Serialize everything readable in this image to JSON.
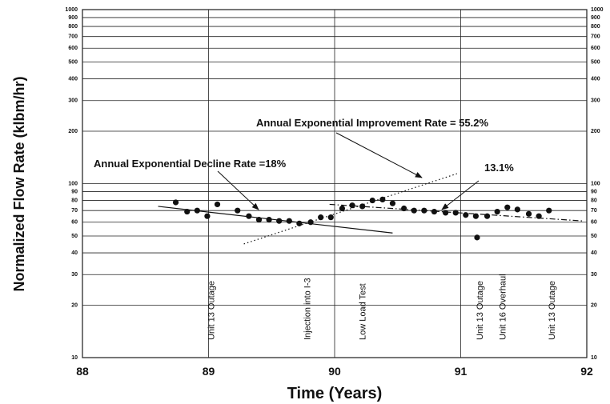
{
  "chart_data": {
    "type": "scatter",
    "ylabel": "Normalized Flow Rate (klbm/hr)",
    "xlabel": "Time (Years)",
    "xlim": [
      88,
      92
    ],
    "xticks": [
      88,
      89,
      90,
      91,
      92
    ],
    "ylim": [
      10,
      1000
    ],
    "log_y": true,
    "grid": true,
    "yticks": [
      10,
      20,
      30,
      40,
      50,
      60,
      70,
      80,
      90,
      100,
      200,
      300,
      400,
      500,
      600,
      700,
      800,
      900,
      1000
    ],
    "annotations": [
      "Annual Exponential Improvement Rate = 55.2%",
      "Annual Exponential Decline Rate =18%",
      "13.1%"
    ],
    "events": [
      {
        "label": "Unit 13 Outage",
        "x": 89.02
      },
      {
        "label": "Injection into I-3",
        "x": 89.78
      },
      {
        "label": "Low Load Test",
        "x": 90.22
      },
      {
        "label": "Unit 13 Outage",
        "x": 91.15
      },
      {
        "label": "Unit 16 Overhaul",
        "x": 91.33
      },
      {
        "label": "Unit 13 Outage",
        "x": 91.72
      }
    ],
    "points": {
      "color": "#111",
      "x": [
        88.74,
        88.83,
        88.91,
        88.99,
        89.07,
        89.23,
        89.32,
        89.4,
        89.48,
        89.56,
        89.64,
        89.72,
        89.81,
        89.89,
        89.97,
        90.06,
        90.14,
        90.22,
        90.3,
        90.38,
        90.46,
        90.55,
        90.63,
        90.71,
        90.79,
        90.88,
        90.96,
        91.04,
        91.12,
        91.13,
        91.21,
        91.29,
        91.37,
        91.45,
        91.54,
        91.62,
        91.7
      ],
      "values": [
        78,
        69,
        70,
        65,
        76,
        70,
        65,
        62,
        62,
        61,
        61,
        59,
        60,
        64,
        64,
        72,
        75,
        74,
        80,
        81,
        77,
        72,
        70,
        70,
        69,
        68,
        68,
        66,
        65,
        49,
        65,
        69,
        73,
        71,
        67,
        65,
        70
      ]
    },
    "trends": [
      {
        "style": "solid",
        "x": [
          88.6,
          90.46
        ],
        "values": [
          74,
          52
        ]
      },
      {
        "style": "dotted",
        "x": [
          89.28,
          90.97
        ],
        "values": [
          45,
          114
        ]
      },
      {
        "style": "dashdot",
        "x": [
          89.96,
          91.97
        ],
        "values": [
          76,
          61
        ]
      }
    ]
  }
}
